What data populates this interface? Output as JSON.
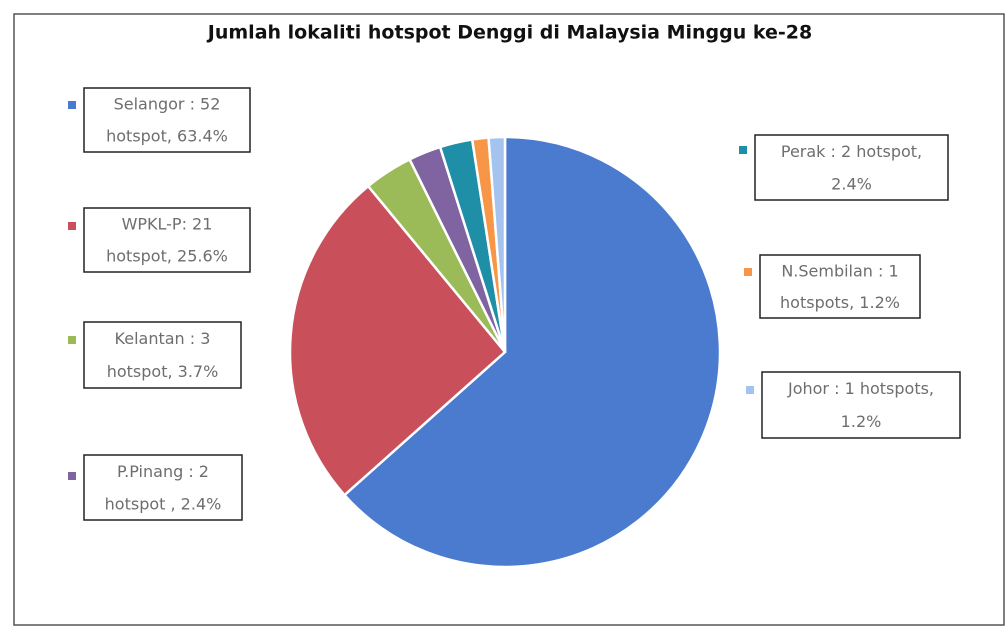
{
  "chart_data": {
    "type": "pie",
    "title": "Jumlah lokaliti hotspot Denggi di Malaysia Minggu ke-28",
    "values": [
      52,
      21,
      3,
      2,
      2,
      1,
      1
    ],
    "value_labels": [
      [
        "Selangor : 52",
        "hotspot, 63.4%"
      ],
      [
        "WPKL-P:  21",
        "hotspot, 25.6%"
      ],
      [
        "Kelantan : 3",
        "hotspot, 3.7%"
      ],
      [
        "P.Pinang : 2",
        "hotspot , 2.4%"
      ],
      [
        "Perak : 2 hotspot,",
        "2.4%"
      ],
      [
        "N.Sembilan : 1",
        "hotspots, 1.2%"
      ],
      [
        "Johor : 1 hotspots,",
        "1.2%"
      ]
    ],
    "colors": [
      "#4a7bcf",
      "#c9505a",
      "#9bbb59",
      "#8064a2",
      "#1f8fa8",
      "#f79646",
      "#a5c3ef"
    ]
  }
}
